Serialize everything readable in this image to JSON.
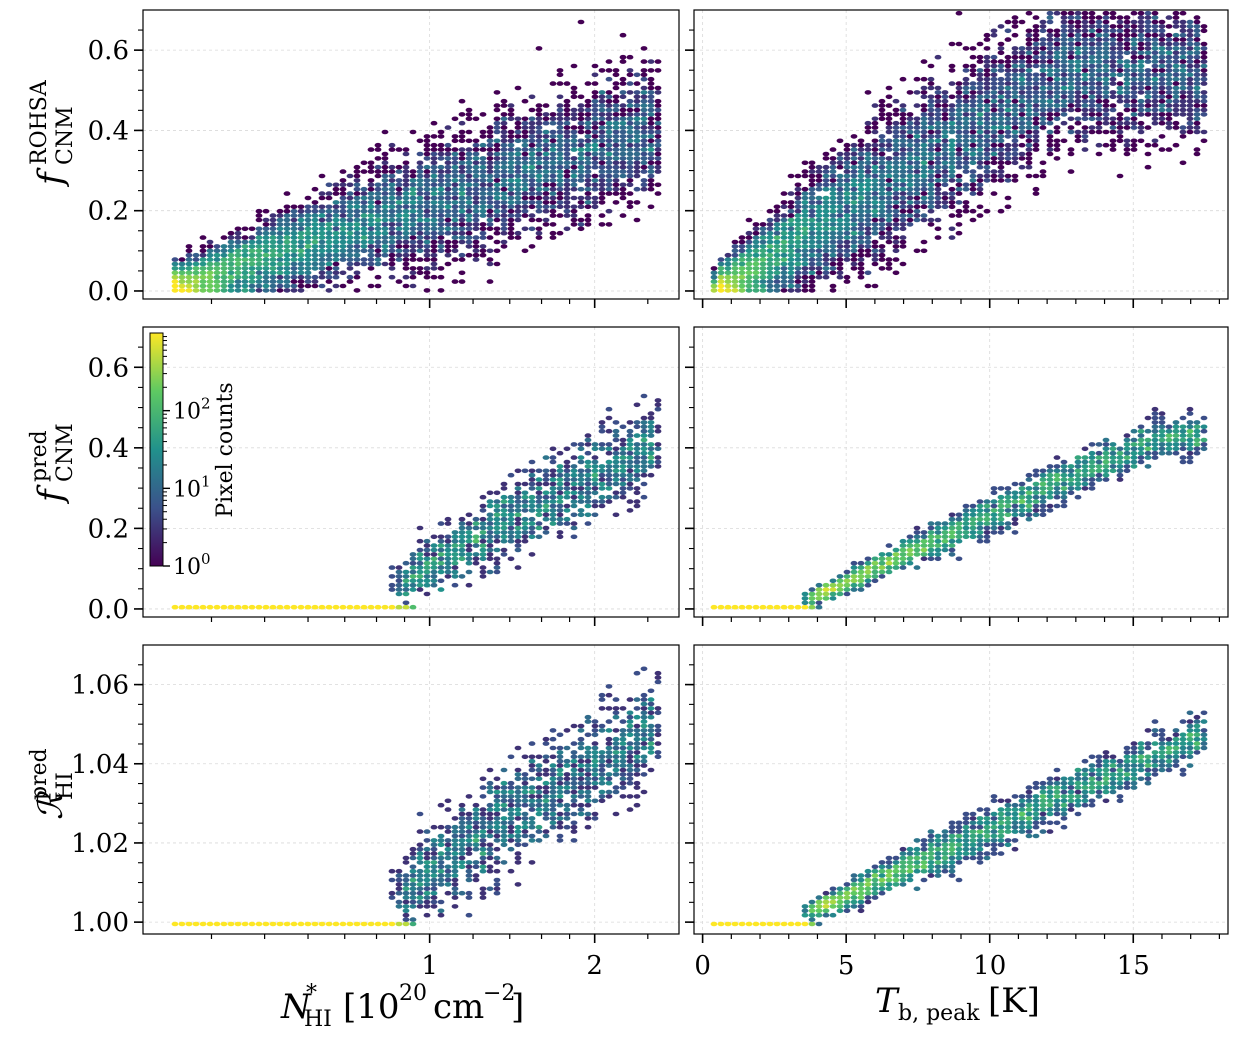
{
  "chart_data": {
    "type": "heatmap",
    "colormap": [
      "#440154",
      "#3b528b",
      "#21918c",
      "#5ec962",
      "#fde725"
    ],
    "grid_color": "#d9d9d9",
    "colorbar": {
      "label": "Pixel counts",
      "ticks": [
        "10^0",
        "10^1",
        "10^2"
      ],
      "range_log": [
        0,
        3
      ]
    },
    "columns": [
      {
        "key": "nhi",
        "xlabel": "N*_HI [10^20 cm^-2]",
        "xlim": [
          0.3,
          2.85
        ],
        "xscale": "log",
        "xticks": [
          1,
          2
        ],
        "xtick_labels": [
          "1",
          "2"
        ],
        "minor_xticks": [
          0.4,
          0.5,
          0.6,
          0.7,
          0.8,
          0.9,
          1.2,
          1.4,
          1.6,
          1.8,
          2.5
        ]
      },
      {
        "key": "tb",
        "xlabel": "T_b,peak [K]",
        "xlim": [
          -0.3,
          18.3
        ],
        "xscale": "linear",
        "xticks": [
          0,
          5,
          10,
          15
        ],
        "xtick_labels": [
          "0",
          "5",
          "10",
          "15"
        ],
        "minor_xticks": [
          1,
          2,
          3,
          4,
          6,
          7,
          8,
          9,
          11,
          12,
          13,
          14,
          16,
          17,
          18
        ]
      }
    ],
    "rows": [
      {
        "key": "fcnm_rohsa",
        "ylabel": "f_CNM^ROHSA",
        "ylim": [
          -0.02,
          0.7
        ],
        "yticks": [
          0.0,
          0.2,
          0.4,
          0.6
        ],
        "ytick_labels": [
          "0.0",
          "0.2",
          "0.4",
          "0.6"
        ],
        "yminor_step": 0.05
      },
      {
        "key": "fcnm_pred",
        "ylabel": "f_CNM^pred",
        "ylim": [
          -0.02,
          0.7
        ],
        "yticks": [
          0.0,
          0.2,
          0.4,
          0.6
        ],
        "ytick_labels": [
          "0.0",
          "0.2",
          "0.4",
          "0.6"
        ],
        "yminor_step": 0.05
      },
      {
        "key": "r_hi_pred",
        "ylabel": "R_HI^pred",
        "ylim": [
          0.997,
          1.07
        ],
        "yticks": [
          1.0,
          1.02,
          1.04,
          1.06
        ],
        "ytick_labels": [
          "1.00",
          "1.02",
          "1.04",
          "1.06"
        ],
        "yminor_step": 0.005
      }
    ],
    "density_models": {
      "fcnm_rohsa": {
        "nhi": {
          "onset": 0.33,
          "slope": 0.43,
          "spread": 0.11,
          "max_x": 2.62,
          "peak_at": [
            0.7,
            0.06
          ]
        },
        "tb": {
          "onset": 0.5,
          "slope": 0.045,
          "spread": 0.12,
          "max_x": 17.5,
          "peak_at": [
            1.5,
            0.05
          ]
        }
      },
      "fcnm_pred": {
        "nhi": {
          "onset": 0.72,
          "slope": 0.32,
          "spread": 0.07,
          "max_x": 2.6,
          "floor_to": 0.85
        },
        "tb": {
          "onset": 3.0,
          "slope": 0.033,
          "spread": 0.035,
          "max_x": 17.5,
          "floor_to": 3.5
        }
      },
      "r_hi_pred": {
        "nhi": {
          "onset": 0.72,
          "slope": 0.026,
          "spread": 0.009,
          "max_x": 2.6,
          "floor_to": 0.85
        },
        "tb": {
          "onset": 3.0,
          "slope": 0.0033,
          "spread": 0.004,
          "max_x": 17.5,
          "floor_to": 3.5
        }
      }
    }
  }
}
